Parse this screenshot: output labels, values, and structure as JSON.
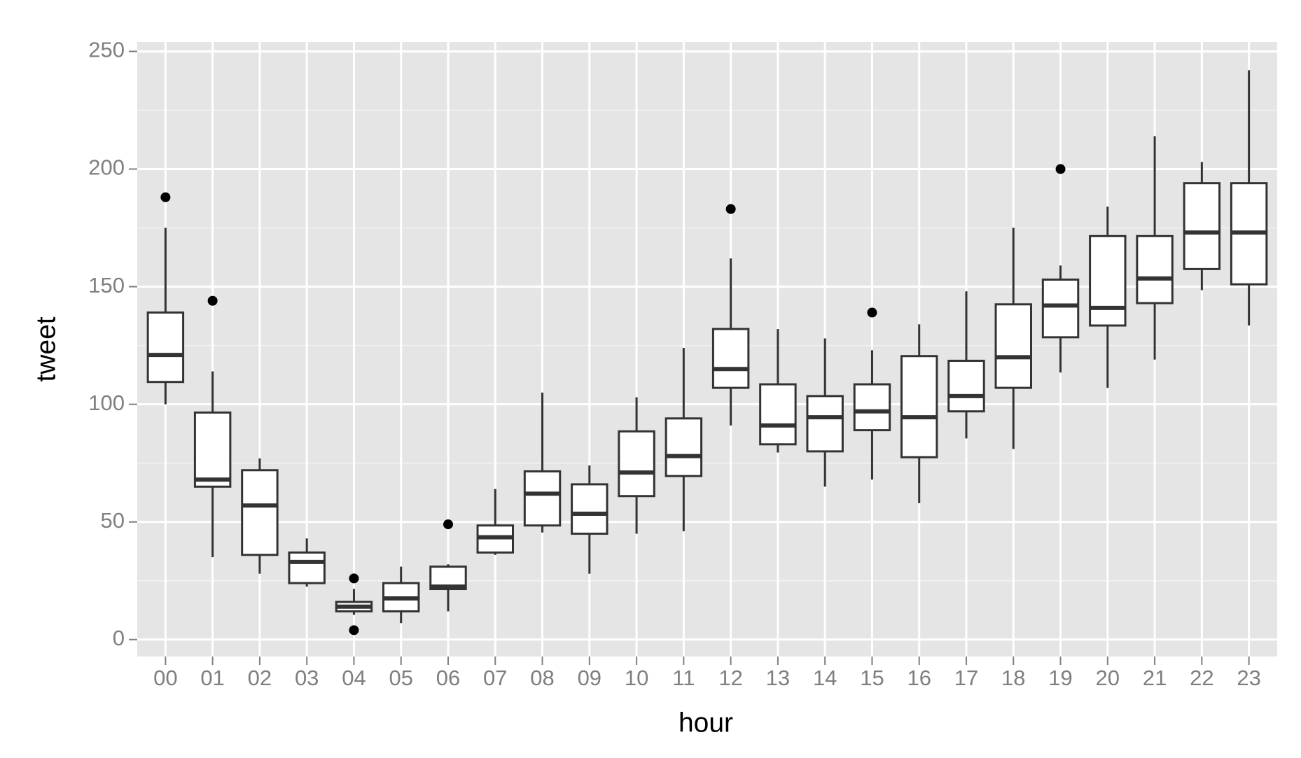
{
  "chart_data": {
    "type": "box",
    "x_label": "hour",
    "y_label": "tweet",
    "categories": [
      "00",
      "01",
      "02",
      "03",
      "04",
      "05",
      "06",
      "07",
      "08",
      "09",
      "10",
      "11",
      "12",
      "13",
      "14",
      "15",
      "16",
      "17",
      "18",
      "19",
      "20",
      "21",
      "22",
      "23"
    ],
    "boxes": [
      {
        "min": 100,
        "q1": 109.5,
        "median": 121,
        "q3": 139,
        "max": 175,
        "outliers": [
          188
        ]
      },
      {
        "min": 35,
        "q1": 65,
        "median": 68,
        "q3": 96.5,
        "max": 114,
        "outliers": [
          144
        ]
      },
      {
        "min": 28,
        "q1": 36,
        "median": 57,
        "q3": 72,
        "max": 77,
        "outliers": []
      },
      {
        "min": 22.5,
        "q1": 24,
        "median": 33,
        "q3": 37,
        "max": 43,
        "outliers": []
      },
      {
        "min": 10.5,
        "q1": 12,
        "median": 14,
        "q3": 16,
        "max": 21.5,
        "outliers": [
          26,
          4
        ]
      },
      {
        "min": 7,
        "q1": 12,
        "median": 17.5,
        "q3": 24,
        "max": 31,
        "outliers": []
      },
      {
        "min": 12,
        "q1": 21.5,
        "median": 22.5,
        "q3": 31,
        "max": 32,
        "outliers": [
          49
        ]
      },
      {
        "min": 36,
        "q1": 37,
        "median": 43.5,
        "q3": 48.5,
        "max": 64,
        "outliers": []
      },
      {
        "min": 45.5,
        "q1": 48.5,
        "median": 62,
        "q3": 71.5,
        "max": 105,
        "outliers": []
      },
      {
        "min": 28,
        "q1": 45,
        "median": 53.5,
        "q3": 66,
        "max": 74,
        "outliers": []
      },
      {
        "min": 45,
        "q1": 61,
        "median": 71,
        "q3": 88.5,
        "max": 103,
        "outliers": []
      },
      {
        "min": 46,
        "q1": 69.5,
        "median": 78,
        "q3": 94,
        "max": 124,
        "outliers": []
      },
      {
        "min": 91,
        "q1": 107,
        "median": 115,
        "q3": 132,
        "max": 162,
        "outliers": [
          183
        ]
      },
      {
        "min": 79.5,
        "q1": 83,
        "median": 91,
        "q3": 108.5,
        "max": 132,
        "outliers": []
      },
      {
        "min": 65,
        "q1": 80,
        "median": 94.5,
        "q3": 103.5,
        "max": 128,
        "outliers": []
      },
      {
        "min": 68,
        "q1": 89,
        "median": 97,
        "q3": 108.5,
        "max": 123,
        "outliers": [
          139
        ]
      },
      {
        "min": 58,
        "q1": 77.5,
        "median": 94.5,
        "q3": 120.5,
        "max": 134,
        "outliers": []
      },
      {
        "min": 85.5,
        "q1": 97,
        "median": 103.5,
        "q3": 118.5,
        "max": 148,
        "outliers": []
      },
      {
        "min": 81,
        "q1": 107,
        "median": 120,
        "q3": 142.5,
        "max": 175,
        "outliers": []
      },
      {
        "min": 113.5,
        "q1": 128.5,
        "median": 142,
        "q3": 153,
        "max": 159,
        "outliers": [
          200
        ]
      },
      {
        "min": 107,
        "q1": 133.5,
        "median": 141,
        "q3": 171.5,
        "max": 184,
        "outliers": []
      },
      {
        "min": 119,
        "q1": 143,
        "median": 153.5,
        "q3": 171.5,
        "max": 214,
        "outliers": []
      },
      {
        "min": 148.5,
        "q1": 157.5,
        "median": 173,
        "q3": 194,
        "max": 203,
        "outliers": []
      },
      {
        "min": 133.5,
        "q1": 151,
        "median": 173,
        "q3": 194,
        "max": 242,
        "outliers": []
      }
    ],
    "ylim": [
      -7.2,
      254
    ],
    "yticks": [
      0,
      50,
      100,
      150,
      200,
      250
    ],
    "grid": true,
    "box_fill": "#ffffff",
    "line_color": "#333333",
    "panel_color": "#e5e5e5"
  }
}
